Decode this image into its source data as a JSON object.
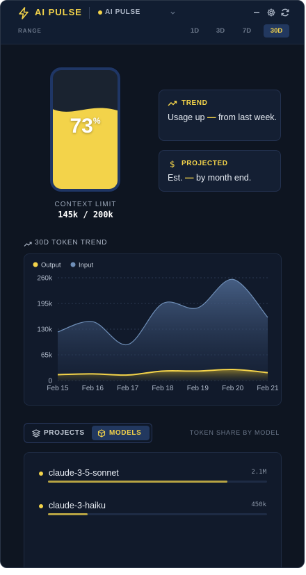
{
  "app": {
    "title": "AI PULSE",
    "provider": "AI PULSE"
  },
  "colors": {
    "accent": "#f3d34a",
    "input_series": "#6f8fb8",
    "background": "#0e1521"
  },
  "range": {
    "label": "RANGE",
    "options": [
      "1D",
      "3D",
      "7D",
      "30D"
    ],
    "selected": "30D"
  },
  "context": {
    "percent": "73",
    "percent_value": 73,
    "percent_sign": "%",
    "label": "CONTEXT LIMIT",
    "value": "145k / 200k"
  },
  "trend_card": {
    "title": "TREND",
    "icon": "trend-up-icon",
    "text_before": "Usage up ",
    "dash": "—",
    "text_after": " from last week."
  },
  "projected_card": {
    "title": "PROJECTED",
    "icon": "dollar-icon",
    "text_before": "Est. ",
    "dash": "—",
    "text_after": " by month end."
  },
  "token_trend": {
    "title": "30D TOKEN TREND",
    "icon": "trend-up-icon"
  },
  "chart_data": {
    "type": "area",
    "title": "30D TOKEN TREND",
    "categories": [
      "Feb 15",
      "Feb 16",
      "Feb 17",
      "Feb 18",
      "Feb 19",
      "Feb 20",
      "Feb 21"
    ],
    "y_ticks": [
      "260k",
      "195k",
      "130k",
      "65k",
      "0"
    ],
    "ylim": [
      0,
      260000
    ],
    "legend": "top-left",
    "grid": true,
    "series": [
      {
        "name": "Output",
        "color": "#f3d34a",
        "values": [
          15000,
          17000,
          14000,
          24000,
          24000,
          28000,
          20000
        ]
      },
      {
        "name": "Input",
        "color": "#6f8fb8",
        "values": [
          123000,
          149000,
          91000,
          195000,
          184000,
          256000,
          160000
        ]
      }
    ]
  },
  "tabs": {
    "projects": "PROJECTS",
    "models": "MODELS",
    "active": "MODELS"
  },
  "share_label": "TOKEN SHARE BY MODEL",
  "models": [
    {
      "name": "claude-3-5-sonnet",
      "value": "2.1M",
      "share": 0.82
    },
    {
      "name": "claude-3-haiku",
      "value": "450k",
      "share": 0.18
    }
  ]
}
